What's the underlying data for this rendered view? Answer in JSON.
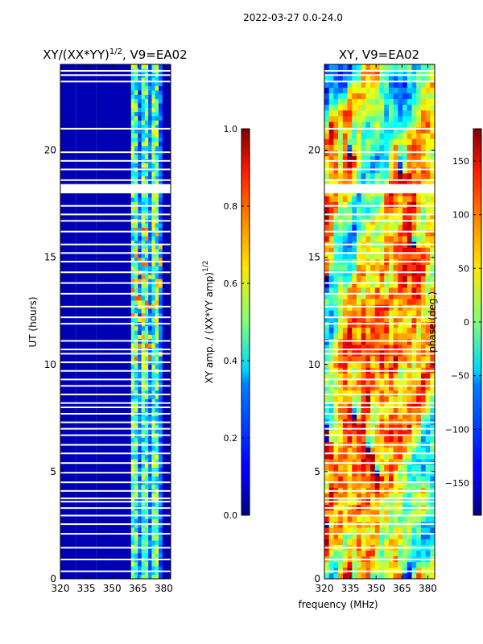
{
  "suptitle": "2022-03-27 0.0-24.0",
  "xlabel_shared": "frequency (MHz)",
  "chart_data": [
    {
      "type": "heatmap",
      "title_main": "XY/(XX*YY)",
      "title_sup": "1/2",
      "title_tail": ", V9=EA02",
      "xlabel": "frequency (MHz)",
      "ylabel": "UT (hours)",
      "xlim": [
        320,
        384
      ],
      "ylim": [
        0,
        24
      ],
      "xticks": [
        320,
        335,
        350,
        365,
        380
      ],
      "yticks": [
        0,
        5,
        10,
        15,
        20
      ],
      "colorbar": {
        "label_main": "XY amp. / (XX*YY amp)",
        "label_sup": "1/2",
        "range": [
          0.0,
          1.0
        ],
        "ticks": [
          "0.0",
          "0.2",
          "0.4",
          "0.6",
          "0.8",
          "1.0"
        ],
        "tick_values": [
          0.0,
          0.2,
          0.4,
          0.6,
          0.8,
          1.0
        ]
      },
      "colormap": "jet",
      "description_values": {
        "background_level": 0.05,
        "active_band_mhz": [
          361,
          380
        ],
        "active_band_level": 0.45
      }
    },
    {
      "type": "heatmap",
      "title": "XY, V9=EA02",
      "xlabel": "frequency (MHz)",
      "ylabel": "",
      "xlim": [
        320,
        384
      ],
      "ylim": [
        0,
        24
      ],
      "xticks": [
        320,
        335,
        350,
        365,
        380
      ],
      "yticks": [
        0,
        5,
        10,
        15,
        20
      ],
      "colorbar": {
        "label": "phase (deg.)",
        "range": [
          -180,
          180
        ],
        "ticks": [
          "−150",
          "−100",
          "−50",
          "0",
          "50",
          "100",
          "150"
        ],
        "tick_values": [
          -150,
          -100,
          -50,
          0,
          50,
          100,
          150
        ]
      },
      "colormap": "jet"
    }
  ],
  "gaps_hours": [
    0.35,
    0.9,
    1.45,
    2.1,
    2.55,
    2.95,
    3.3,
    3.6,
    3.75,
    4.1,
    4.5,
    4.95,
    5.4,
    5.85,
    6.25,
    6.7,
    7.0,
    7.3,
    7.7,
    8.0,
    8.2,
    8.6,
    9.0,
    9.3,
    9.7,
    10.1,
    10.5,
    10.7,
    11.1,
    11.9,
    12.2,
    12.7,
    13.3,
    13.8,
    14.3,
    14.8,
    15.2,
    15.6,
    16.2,
    16.7,
    17.0,
    17.4,
    18.05,
    18.15,
    18.25,
    18.35,
    18.6,
    19.1,
    19.5,
    19.9,
    21.0,
    23.2,
    23.5,
    23.7
  ]
}
